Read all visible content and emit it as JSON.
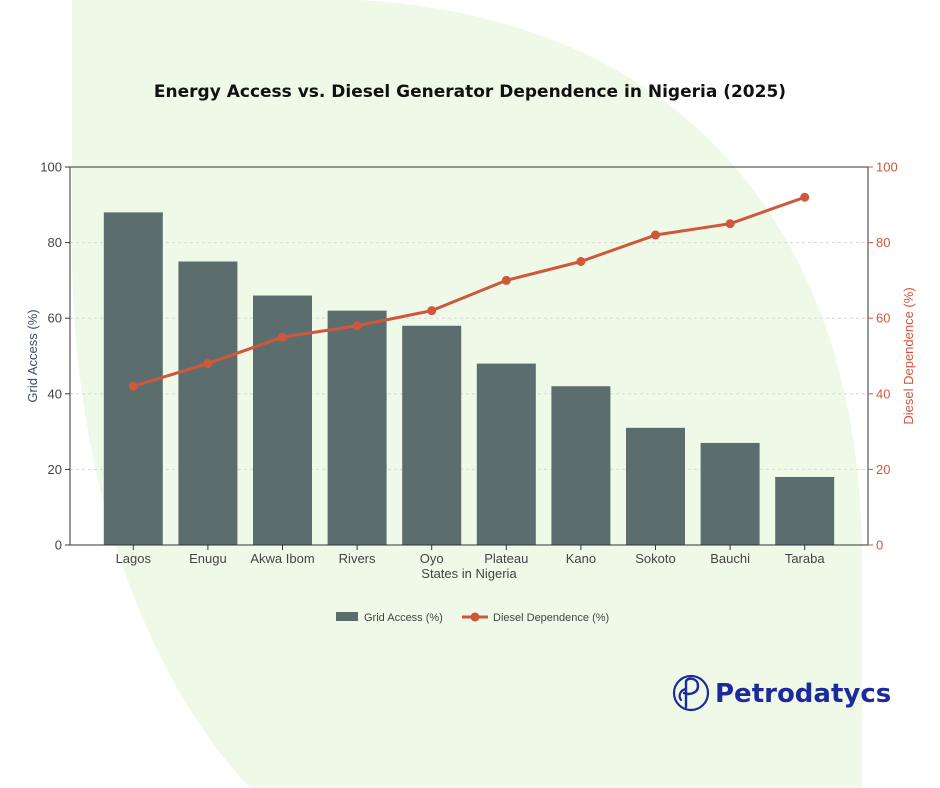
{
  "colors": {
    "background_blob": "#eff9e8",
    "bar": "#5b6e6d",
    "line": "#d0563c",
    "axis_left": "#3d4d6b",
    "brand": "#1d2a9c"
  },
  "chart_data": {
    "type": "bar",
    "title": "Energy Access vs. Diesel Generator Dependence in Nigeria (2025)",
    "xlabel": "States in Nigeria",
    "ylabel": "Grid Access (%)",
    "y2label": "Diesel Dependence (%)",
    "ylim": [
      0,
      100
    ],
    "y2lim": [
      0,
      100
    ],
    "yticks": [
      "0",
      "20",
      "40",
      "60",
      "80",
      "100"
    ],
    "y2ticks": [
      "0",
      "20",
      "40",
      "60",
      "80",
      "100"
    ],
    "grid": true,
    "legend_position": "bottom-center",
    "categories": [
      "Lagos",
      "Enugu",
      "Akwa Ibom",
      "Rivers",
      "Oyo",
      "Plateau",
      "Kano",
      "Sokoto",
      "Bauchi",
      "Taraba"
    ],
    "series": [
      {
        "name": "Grid Access (%)",
        "type": "bar",
        "axis": "left",
        "values": [
          88,
          75,
          66,
          62,
          58,
          48,
          42,
          31,
          27,
          18
        ]
      },
      {
        "name": "Diesel Dependence (%)",
        "type": "line",
        "axis": "right",
        "values": [
          42,
          48,
          55,
          58,
          62,
          70,
          75,
          82,
          85,
          92
        ]
      }
    ]
  },
  "brand": {
    "name": "Petrodatycs",
    "logo_icon": "p-monogram-icon"
  }
}
